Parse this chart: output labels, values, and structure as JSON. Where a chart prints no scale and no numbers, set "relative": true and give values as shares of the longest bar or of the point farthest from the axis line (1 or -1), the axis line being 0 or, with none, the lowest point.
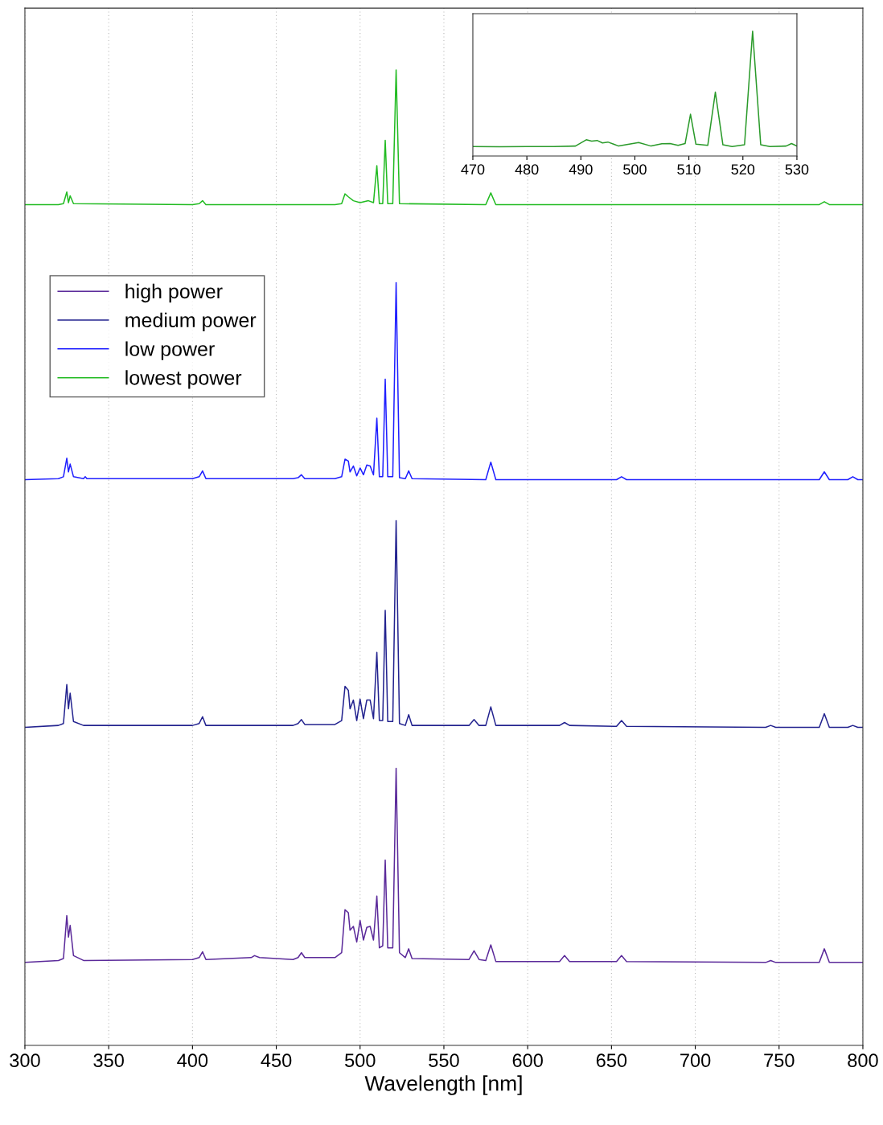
{
  "chart_data": [
    {
      "type": "line",
      "xlabel": "Wavelength [nm]",
      "xlim": [
        300,
        800
      ],
      "xticks": [
        300,
        350,
        400,
        450,
        500,
        550,
        600,
        650,
        700,
        750,
        800
      ],
      "relative": true,
      "grid": "x",
      "legend": "top left",
      "tick_labels": "x",
      "line_style": "solid",
      "marker": "none",
      "series": [
        {
          "name": "high power",
          "color": "#5b2a9a",
          "x": [
            300,
            320,
            323,
            325,
            326,
            327,
            329,
            335,
            400,
            404,
            406,
            408,
            435,
            437,
            440,
            460,
            463,
            465,
            467,
            485,
            489,
            491,
            493,
            494,
            496,
            498,
            500,
            502,
            504,
            506,
            508,
            510,
            511.5,
            513.5,
            515,
            516.5,
            519.5,
            521.5,
            523.5,
            527,
            529,
            531,
            565,
            568,
            571,
            575,
            578,
            581,
            619,
            622,
            625,
            653,
            656,
            659,
            742,
            745,
            748,
            774,
            777,
            780,
            800
          ],
          "values": [
            0.085,
            0.087,
            0.089,
            0.133,
            0.111,
            0.123,
            0.092,
            0.087,
            0.088,
            0.09,
            0.096,
            0.088,
            0.09,
            0.092,
            0.09,
            0.088,
            0.09,
            0.095,
            0.09,
            0.09,
            0.095,
            0.139,
            0.136,
            0.118,
            0.122,
            0.106,
            0.128,
            0.108,
            0.121,
            0.122,
            0.108,
            0.153,
            0.1,
            0.102,
            0.19,
            0.1,
            0.1,
            0.284,
            0.095,
            0.09,
            0.099,
            0.089,
            0.088,
            0.097,
            0.088,
            0.087,
            0.103,
            0.086,
            0.086,
            0.092,
            0.086,
            0.086,
            0.092,
            0.086,
            0.085,
            0.087,
            0.085,
            0.085,
            0.099,
            0.085,
            0.085
          ]
        },
        {
          "name": "medium power",
          "color": "#23238f",
          "x": [
            300,
            320,
            323,
            325,
            326,
            327,
            329,
            335,
            400,
            404,
            406,
            408,
            460,
            463,
            465,
            467,
            485,
            489,
            491,
            493,
            494,
            496,
            498,
            500,
            502,
            504,
            506,
            508,
            510,
            511.5,
            513.5,
            515,
            516.5,
            519.5,
            521.5,
            523.5,
            527,
            529,
            531,
            565,
            568,
            571,
            575,
            578,
            581,
            619,
            622,
            625,
            653,
            656,
            659,
            742,
            745,
            748,
            774,
            777,
            780,
            791,
            794,
            797,
            800
          ],
          "values": [
            0.326,
            0.328,
            0.33,
            0.37,
            0.345,
            0.361,
            0.332,
            0.328,
            0.328,
            0.33,
            0.337,
            0.328,
            0.328,
            0.33,
            0.334,
            0.329,
            0.329,
            0.333,
            0.368,
            0.364,
            0.345,
            0.354,
            0.333,
            0.355,
            0.335,
            0.354,
            0.354,
            0.335,
            0.403,
            0.333,
            0.333,
            0.446,
            0.332,
            0.332,
            0.538,
            0.33,
            0.328,
            0.339,
            0.328,
            0.328,
            0.334,
            0.328,
            0.328,
            0.347,
            0.328,
            0.328,
            0.331,
            0.328,
            0.327,
            0.333,
            0.327,
            0.326,
            0.328,
            0.326,
            0.326,
            0.34,
            0.326,
            0.326,
            0.328,
            0.326,
            0.326
          ]
        },
        {
          "name": "low power",
          "color": "#1f1fff",
          "x": [
            300,
            320,
            323,
            325,
            326,
            327,
            329,
            335,
            336,
            337,
            400,
            404,
            406,
            408,
            460,
            463,
            465,
            467,
            485,
            489,
            491,
            493,
            494,
            496,
            498,
            500,
            502,
            504,
            506,
            508,
            510,
            511.5,
            513.5,
            515,
            516.5,
            519.5,
            521.5,
            523.5,
            527,
            529,
            531,
            575,
            578,
            581,
            653,
            656,
            659,
            774,
            777,
            780,
            791,
            794,
            797,
            800
          ],
          "values": [
            0.58,
            0.581,
            0.583,
            0.602,
            0.588,
            0.596,
            0.583,
            0.581,
            0.583,
            0.581,
            0.581,
            0.583,
            0.589,
            0.581,
            0.581,
            0.582,
            0.585,
            0.581,
            0.581,
            0.583,
            0.601,
            0.599,
            0.588,
            0.594,
            0.584,
            0.592,
            0.585,
            0.595,
            0.594,
            0.585,
            0.643,
            0.583,
            0.583,
            0.683,
            0.583,
            0.583,
            0.782,
            0.582,
            0.581,
            0.589,
            0.581,
            0.58,
            0.598,
            0.58,
            0.58,
            0.583,
            0.58,
            0.58,
            0.588,
            0.58,
            0.58,
            0.583,
            0.58,
            0.58
          ]
        },
        {
          "name": "lowest power",
          "color": "#22bb22",
          "x": [
            300,
            320,
            323,
            325,
            326,
            327,
            329,
            400,
            404,
            406,
            408,
            485,
            489,
            491,
            493,
            496,
            500,
            505,
            508,
            510,
            511.5,
            513.5,
            515,
            516.5,
            519.5,
            521.5,
            523.5,
            575,
            578,
            581,
            774,
            777,
            780,
            800
          ],
          "values": [
            0.862,
            0.862,
            0.863,
            0.875,
            0.864,
            0.871,
            0.863,
            0.862,
            0.863,
            0.866,
            0.862,
            0.862,
            0.863,
            0.873,
            0.87,
            0.866,
            0.864,
            0.866,
            0.864,
            0.902,
            0.863,
            0.863,
            0.928,
            0.863,
            0.863,
            1.0,
            0.863,
            0.862,
            0.874,
            0.862,
            0.862,
            0.865,
            0.862,
            0.862
          ]
        }
      ]
    },
    {
      "type": "line",
      "xlim": [
        470,
        530
      ],
      "xticks": [
        470,
        480,
        490,
        500,
        510,
        520,
        530
      ],
      "relative": true,
      "grid": false,
      "tick_labels": "x",
      "line_style": "solid",
      "marker": "none",
      "series": [
        {
          "color": "#2a9a2a",
          "x": [
            470,
            475,
            480,
            485,
            489,
            491,
            492,
            493,
            494,
            495,
            497,
            500.7,
            503,
            505,
            506.5,
            508,
            509.3,
            510.3,
            511.3,
            513.5,
            514.9,
            516.3,
            518,
            520.3,
            521.8,
            523.3,
            525,
            528,
            529,
            530
          ],
          "values": [
            0.076,
            0.074,
            0.076,
            0.076,
            0.08,
            0.13,
            0.12,
            0.125,
            0.105,
            0.112,
            0.08,
            0.108,
            0.08,
            0.098,
            0.1,
            0.085,
            0.1,
            0.335,
            0.095,
            0.086,
            0.512,
            0.09,
            0.076,
            0.09,
            1.0,
            0.09,
            0.076,
            0.08,
            0.1,
            0.08
          ]
        }
      ]
    }
  ]
}
